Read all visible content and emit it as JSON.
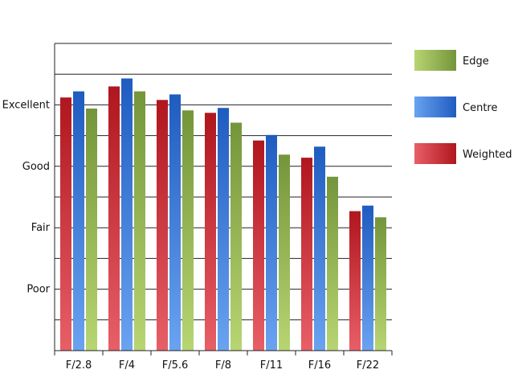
{
  "chart_data": {
    "type": "bar",
    "categories": [
      "F/2.8",
      "F/4",
      "F/5.6",
      "F/8",
      "F/11",
      "F/16",
      "F/22"
    ],
    "y_ticks": [
      {
        "value": 1,
        "label": "Poor"
      },
      {
        "value": 2,
        "label": "Fair"
      },
      {
        "value": 3,
        "label": "Good"
      },
      {
        "value": 4,
        "label": "Excellent"
      }
    ],
    "ylim": [
      0,
      5
    ],
    "grid": true,
    "legend_position": "right",
    "series": [
      {
        "name": "Weighted",
        "values": [
          4.12,
          4.3,
          4.08,
          3.87,
          3.42,
          3.14,
          2.27
        ],
        "color_dark": "#b0161e",
        "color_light": "#e85f68"
      },
      {
        "name": "Centre",
        "values": [
          4.22,
          4.43,
          4.17,
          3.95,
          3.51,
          3.32,
          2.36
        ],
        "color_dark": "#1f5cc0",
        "color_light": "#6aa3f0"
      },
      {
        "name": "Edge",
        "values": [
          3.94,
          4.22,
          3.91,
          3.71,
          3.19,
          2.83,
          2.17
        ],
        "color_dark": "#74953a",
        "color_light": "#b8d572"
      }
    ],
    "legend": [
      "Edge",
      "Centre",
      "Weighted"
    ]
  }
}
